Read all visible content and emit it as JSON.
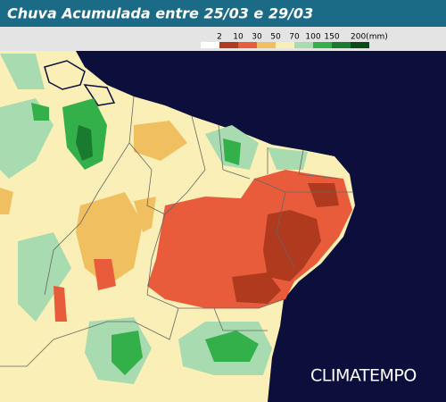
{
  "header": {
    "title": "Chuva Acumulada entre 25/03 e 29/03"
  },
  "legend": {
    "items": [
      {
        "label": "2",
        "color": "#ffffff"
      },
      {
        "label": "10",
        "color": "#b03a1e"
      },
      {
        "label": "30",
        "color": "#e85c3c"
      },
      {
        "label": "50",
        "color": "#f0c060"
      },
      {
        "label": "70",
        "color": "#fbefb8"
      },
      {
        "label": "100",
        "color": "#a8dcb0"
      },
      {
        "label": "150",
        "color": "#33b04a"
      },
      {
        "label": "200(mm)",
        "color": "#1a7a30"
      }
    ],
    "end_color": "#0a4a18"
  },
  "brand": "CLIMATEMPO"
}
